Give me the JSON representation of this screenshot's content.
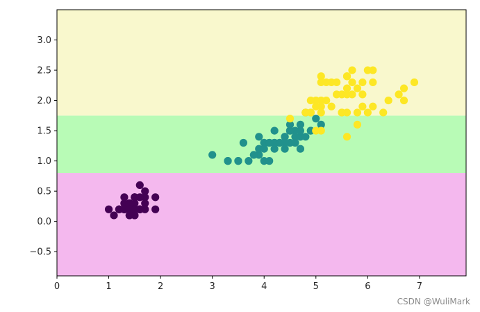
{
  "chart_data": {
    "type": "scatter",
    "title": "",
    "xlabel": "",
    "ylabel": "",
    "xlim": [
      0,
      7.9
    ],
    "ylim": [
      -0.9,
      3.5
    ],
    "grid": false,
    "x_ticks": [
      0,
      1,
      2,
      3,
      4,
      5,
      6,
      7
    ],
    "x_tick_labels": [
      "0",
      "1",
      "2",
      "3",
      "4",
      "5",
      "6",
      "7"
    ],
    "y_ticks": [
      -0.5,
      0.0,
      0.5,
      1.0,
      1.5,
      2.0,
      2.5,
      3.0
    ],
    "y_tick_labels": [
      "−0.5",
      "0.0",
      "0.5",
      "1.0",
      "1.5",
      "2.0",
      "2.5",
      "3.0"
    ],
    "regions": [
      {
        "y_from": -0.9,
        "y_to": 0.8,
        "color": "#f4b8ee"
      },
      {
        "y_from": 0.8,
        "y_to": 1.75,
        "color": "#b8fbb6"
      },
      {
        "y_from": 1.75,
        "y_to": 3.5,
        "color": "#f9f8cd"
      }
    ],
    "series": [
      {
        "color": "#440154",
        "points": [
          [
            1.4,
            0.2
          ],
          [
            1.4,
            0.2
          ],
          [
            1.3,
            0.2
          ],
          [
            1.5,
            0.2
          ],
          [
            1.4,
            0.2
          ],
          [
            1.7,
            0.4
          ],
          [
            1.4,
            0.3
          ],
          [
            1.5,
            0.2
          ],
          [
            1.4,
            0.2
          ],
          [
            1.5,
            0.1
          ],
          [
            1.5,
            0.2
          ],
          [
            1.6,
            0.2
          ],
          [
            1.4,
            0.1
          ],
          [
            1.1,
            0.1
          ],
          [
            1.2,
            0.2
          ],
          [
            1.5,
            0.4
          ],
          [
            1.3,
            0.4
          ],
          [
            1.4,
            0.3
          ],
          [
            1.7,
            0.3
          ],
          [
            1.5,
            0.3
          ],
          [
            1.7,
            0.2
          ],
          [
            1.5,
            0.4
          ],
          [
            1.0,
            0.2
          ],
          [
            1.7,
            0.5
          ],
          [
            1.9,
            0.2
          ],
          [
            1.6,
            0.2
          ],
          [
            1.6,
            0.4
          ],
          [
            1.5,
            0.2
          ],
          [
            1.4,
            0.2
          ],
          [
            1.6,
            0.2
          ],
          [
            1.6,
            0.2
          ],
          [
            1.5,
            0.4
          ],
          [
            1.5,
            0.1
          ],
          [
            1.4,
            0.2
          ],
          [
            1.5,
            0.2
          ],
          [
            1.2,
            0.2
          ],
          [
            1.3,
            0.2
          ],
          [
            1.4,
            0.1
          ],
          [
            1.3,
            0.2
          ],
          [
            1.5,
            0.2
          ],
          [
            1.3,
            0.3
          ],
          [
            1.3,
            0.3
          ],
          [
            1.3,
            0.2
          ],
          [
            1.6,
            0.6
          ],
          [
            1.9,
            0.4
          ],
          [
            1.4,
            0.3
          ],
          [
            1.6,
            0.2
          ],
          [
            1.4,
            0.2
          ],
          [
            1.5,
            0.2
          ],
          [
            1.4,
            0.2
          ]
        ]
      },
      {
        "color": "#21918c",
        "points": [
          [
            4.7,
            1.4
          ],
          [
            4.5,
            1.5
          ],
          [
            4.9,
            1.5
          ],
          [
            4.0,
            1.3
          ],
          [
            4.6,
            1.5
          ],
          [
            4.5,
            1.3
          ],
          [
            4.7,
            1.6
          ],
          [
            3.3,
            1.0
          ],
          [
            4.6,
            1.3
          ],
          [
            3.9,
            1.4
          ],
          [
            3.5,
            1.0
          ],
          [
            4.2,
            1.5
          ],
          [
            4.0,
            1.0
          ],
          [
            4.7,
            1.4
          ],
          [
            3.6,
            1.3
          ],
          [
            4.4,
            1.4
          ],
          [
            4.5,
            1.5
          ],
          [
            4.1,
            1.0
          ],
          [
            4.5,
            1.5
          ],
          [
            3.9,
            1.1
          ],
          [
            4.8,
            1.8
          ],
          [
            4.0,
            1.3
          ],
          [
            4.9,
            1.5
          ],
          [
            4.7,
            1.2
          ],
          [
            4.3,
            1.3
          ],
          [
            4.4,
            1.4
          ],
          [
            4.8,
            1.4
          ],
          [
            5.0,
            1.7
          ],
          [
            4.5,
            1.5
          ],
          [
            3.5,
            1.0
          ],
          [
            3.8,
            1.1
          ],
          [
            3.7,
            1.0
          ],
          [
            3.9,
            1.2
          ],
          [
            5.1,
            1.6
          ],
          [
            4.5,
            1.5
          ],
          [
            4.5,
            1.6
          ],
          [
            4.7,
            1.5
          ],
          [
            4.4,
            1.3
          ],
          [
            4.1,
            1.3
          ],
          [
            4.0,
            1.3
          ],
          [
            4.4,
            1.2
          ],
          [
            4.6,
            1.4
          ],
          [
            4.0,
            1.2
          ],
          [
            3.3,
            1.0
          ],
          [
            4.2,
            1.3
          ],
          [
            4.2,
            1.2
          ],
          [
            4.2,
            1.3
          ],
          [
            4.3,
            1.3
          ],
          [
            3.0,
            1.1
          ],
          [
            4.1,
            1.3
          ]
        ]
      },
      {
        "color": "#fde725",
        "points": [
          [
            6.0,
            2.5
          ],
          [
            5.1,
            1.9
          ],
          [
            5.9,
            2.1
          ],
          [
            5.6,
            1.8
          ],
          [
            5.8,
            2.2
          ],
          [
            6.6,
            2.1
          ],
          [
            4.5,
            1.7
          ],
          [
            6.3,
            1.8
          ],
          [
            5.8,
            1.8
          ],
          [
            6.1,
            2.5
          ],
          [
            5.1,
            2.0
          ],
          [
            5.3,
            1.9
          ],
          [
            5.5,
            2.1
          ],
          [
            5.0,
            2.0
          ],
          [
            5.1,
            2.4
          ],
          [
            5.3,
            2.3
          ],
          [
            5.5,
            1.8
          ],
          [
            6.7,
            2.2
          ],
          [
            6.9,
            2.3
          ],
          [
            5.0,
            1.5
          ],
          [
            5.7,
            2.3
          ],
          [
            4.9,
            2.0
          ],
          [
            6.7,
            2.0
          ],
          [
            4.9,
            1.8
          ],
          [
            5.7,
            2.1
          ],
          [
            6.0,
            1.8
          ],
          [
            4.8,
            1.8
          ],
          [
            4.9,
            1.8
          ],
          [
            5.6,
            2.1
          ],
          [
            5.8,
            1.6
          ],
          [
            6.1,
            1.9
          ],
          [
            6.4,
            2.0
          ],
          [
            5.6,
            2.2
          ],
          [
            5.1,
            1.5
          ],
          [
            5.6,
            1.4
          ],
          [
            6.1,
            2.3
          ],
          [
            5.6,
            2.4
          ],
          [
            5.5,
            1.8
          ],
          [
            4.8,
            1.8
          ],
          [
            5.4,
            2.1
          ],
          [
            5.6,
            2.4
          ],
          [
            5.1,
            2.3
          ],
          [
            5.9,
            2.3
          ],
          [
            5.7,
            2.5
          ],
          [
            5.2,
            2.3
          ],
          [
            5.0,
            1.9
          ],
          [
            5.2,
            2.0
          ],
          [
            5.4,
            2.3
          ],
          [
            5.1,
            1.8
          ],
          [
            5.9,
            1.9
          ]
        ]
      }
    ]
  },
  "watermark": "CSDN @WuliMark"
}
